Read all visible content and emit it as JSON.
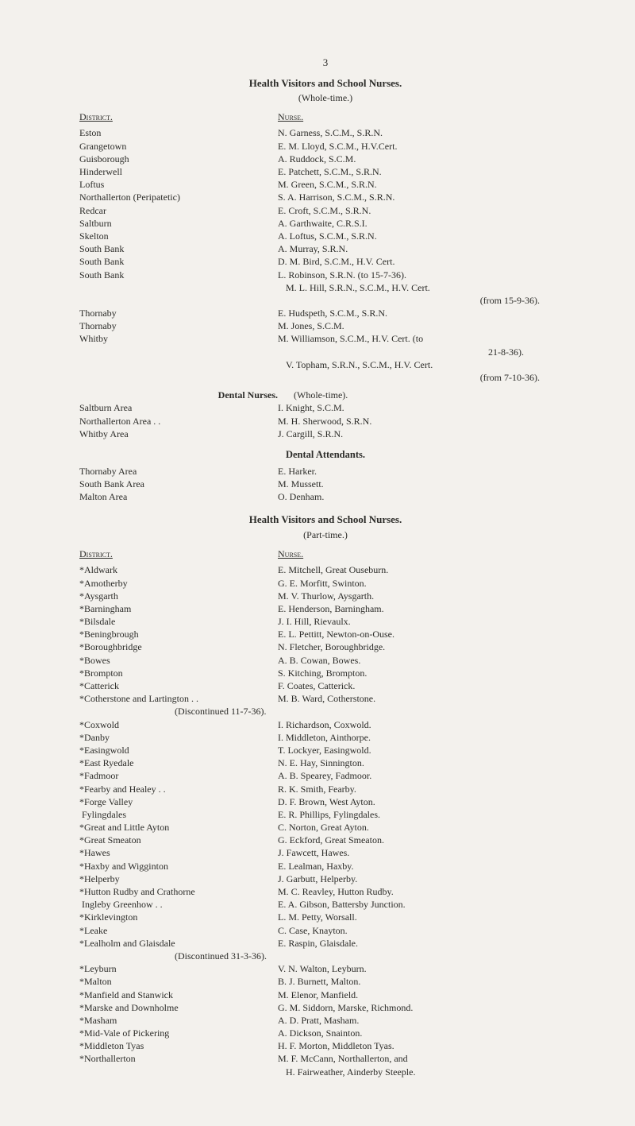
{
  "pageno": "3",
  "title1": "Health Visitors and School Nurses.",
  "wholetime": "(Whole-time.)",
  "parttime": "(Part-time.)",
  "district": "District.",
  "nurse": "Nurse.",
  "whole": [
    {
      "d": "Eston",
      "n": "N. Garness, S.C.M., S.R.N."
    },
    {
      "d": "Grangetown",
      "n": "E. M. Lloyd, S.C.M., H.V.Cert."
    },
    {
      "d": "Guisborough",
      "n": "A. Ruddock, S.C.M."
    },
    {
      "d": "Hinderwell",
      "n": "E. Patchett, S.C.M., S.R.N."
    },
    {
      "d": "Loftus",
      "n": "M. Green, S.C.M., S.R.N."
    },
    {
      "d": "Northallerton (Peripatetic)",
      "n": "S. A. Harrison, S.C.M., S.R.N."
    },
    {
      "d": "Redcar",
      "n": "E. Croft, S.C.M., S.R.N."
    },
    {
      "d": "Saltburn",
      "n": "A. Garthwaite, C.R.S.I."
    },
    {
      "d": "Skelton",
      "n": "A. Loftus, S.C.M., S.R.N."
    },
    {
      "d": "South Bank",
      "n": "A. Murray, S.R.N."
    },
    {
      "d": "South Bank",
      "n": "D. M. Bird, S.C.M., H.V. Cert."
    },
    {
      "d": "South Bank",
      "n": "L. Robinson, S.R.N. (to 15-7-36)."
    }
  ],
  "whole_extra1": "M. L. Hill, S.R.N., S.C.M., H.V. Cert.",
  "whole_extra1b": "(from 15-9-36).",
  "whole2": [
    {
      "d": "Thornaby",
      "n": "E. Hudspeth, S.C.M., S.R.N."
    },
    {
      "d": "Thornaby",
      "n": "M. Jones, S.C.M."
    },
    {
      "d": "Whitby",
      "n": "M. Williamson, S.C.M., H.V. Cert. (to"
    }
  ],
  "whole_extra2": "21-8-36).",
  "whole_extra3": "V. Topham, S.R.N., S.C.M., H.V. Cert.",
  "whole_extra3b": "(from 7-10-36).",
  "dentalnurses_title": "Dental Nurses.",
  "dentalnurses_paren": "(Whole-time).",
  "dn": [
    {
      "d": "Saltburn Area",
      "n": "I. Knight, S.C.M."
    },
    {
      "d": "Northallerton Area . .",
      "n": "M. H. Sherwood, S.R.N."
    },
    {
      "d": "Whitby Area",
      "n": "J. Cargill, S.R.N."
    }
  ],
  "dentalatt_title": "Dental Attendants.",
  "da": [
    {
      "d": "Thornaby Area",
      "n": "E. Harker."
    },
    {
      "d": "South Bank Area",
      "n": "M. Mussett."
    },
    {
      "d": "Malton Area",
      "n": "O. Denham."
    }
  ],
  "part": [
    {
      "d": "*Aldwark",
      "n": "E. Mitchell, Great Ouseburn."
    },
    {
      "d": "*Amotherby",
      "n": "G. E. Morfitt, Swinton."
    },
    {
      "d": "*Aysgarth",
      "n": "M. V. Thurlow, Aysgarth."
    },
    {
      "d": "*Barningham",
      "n": "E. Henderson, Barningham."
    },
    {
      "d": "*Bilsdale",
      "n": "J. I. Hill, Rievaulx."
    },
    {
      "d": "*Beningbrough",
      "n": "E. L. Pettitt, Newton-on-Ouse."
    },
    {
      "d": "*Boroughbridge",
      "n": "N. Fletcher, Boroughbridge."
    },
    {
      "d": "*Bowes",
      "n": "A. B. Cowan, Bowes."
    },
    {
      "d": "*Brompton",
      "n": "S. Kitching, Brompton."
    },
    {
      "d": "*Catterick",
      "n": "F. Coates, Catterick."
    },
    {
      "d": "*Cotherstone and Lartington . .",
      "n": "M. B. Ward, Cotherstone."
    }
  ],
  "disc1": "(Discontinued 11-7-36).",
  "part2": [
    {
      "d": "*Coxwold",
      "n": "I. Richardson, Coxwold."
    },
    {
      "d": "*Danby",
      "n": "I. Middleton, Ainthorpe."
    },
    {
      "d": "*Easingwold",
      "n": "T. Lockyer, Easingwold."
    },
    {
      "d": "*East Ryedale",
      "n": "N. E. Hay, Sinnington."
    },
    {
      "d": "*Fadmoor",
      "n": "A. B. Spearey, Fadmoor."
    },
    {
      "d": "*Fearby and Healey . .",
      "n": "R. K. Smith, Fearby."
    },
    {
      "d": "*Forge Valley",
      "n": "D. F. Brown, West Ayton."
    },
    {
      "d": " Fylingdales",
      "n": "E. R. Phillips, Fylingdales."
    },
    {
      "d": "*Great and Little Ayton",
      "n": "C. Norton, Great Ayton."
    },
    {
      "d": "*Great Smeaton",
      "n": "G. Eckford, Great Smeaton."
    },
    {
      "d": "*Hawes",
      "n": "J. Fawcett, Hawes."
    },
    {
      "d": "*Haxby and Wigginton",
      "n": "E. Lealman, Haxby."
    },
    {
      "d": "*Helperby",
      "n": "J. Garbutt, Helperby."
    },
    {
      "d": "*Hutton Rudby and Crathorne",
      "n": "M. C. Reavley, Hutton Rudby."
    },
    {
      "d": " Ingleby Greenhow . .",
      "n": "E. A. Gibson, Battersby Junction."
    },
    {
      "d": "*Kirklevington",
      "n": "L. M. Petty, Worsall."
    },
    {
      "d": "*Leake",
      "n": "C. Case, Knayton."
    },
    {
      "d": "*Lealholm and Glaisdale",
      "n": "E. Raspin, Glaisdale."
    }
  ],
  "disc2": "(Discontinued 31-3-36).",
  "part3": [
    {
      "d": "*Leyburn",
      "n": "V. N. Walton, Leyburn."
    },
    {
      "d": "*Malton",
      "n": "B. J. Burnett, Malton."
    },
    {
      "d": "*Manfield and Stanwick",
      "n": "M. Elenor, Manfield."
    },
    {
      "d": "*Marske and Downholme",
      "n": "G. M. Siddorn, Marske, Richmond."
    },
    {
      "d": "*Masham",
      "n": "A. D. Pratt, Masham."
    },
    {
      "d": "*Mid-Vale of Pickering",
      "n": "A. Dickson, Snainton."
    },
    {
      "d": "*Middleton Tyas",
      "n": "H. F. Morton, Middleton Tyas."
    },
    {
      "d": "*Northallerton",
      "n": "M. F. McCann, Northallerton, and"
    }
  ],
  "part3_extra": "H. Fairweather, Ainderby Steeple."
}
